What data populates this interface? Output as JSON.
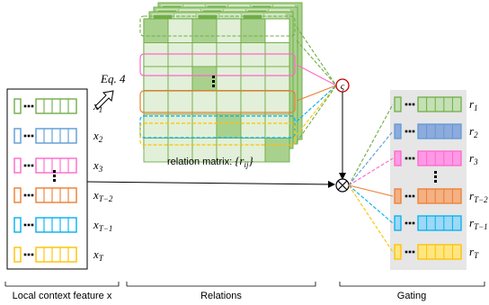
{
  "colors": {
    "green": "#70ad47",
    "green_fill": "#c5e0b4",
    "green_dark": "#70ad47",
    "blue": "#5b9bd5",
    "blue_fill": "#8faadc",
    "pink": "#ff66cc",
    "pink_fill": "#ff99e6",
    "orange": "#ed7d31",
    "orange_fill": "#f4b183",
    "cyan": "#00b0f0",
    "cyan_fill": "#9dd8f5",
    "yellow": "#ffc000",
    "yellow_fill": "#ffe680",
    "gating_bg": "#e6e6e6",
    "sigma_circle": "#c00000"
  },
  "input_features": {
    "rows": [
      {
        "color": "green",
        "label_base": "x",
        "label_sub": "1"
      },
      {
        "color": "blue",
        "label_base": "x",
        "label_sub": "2"
      },
      {
        "color": "pink",
        "label_base": "x",
        "label_sub": "3"
      },
      {
        "color": "orange",
        "label_base": "x",
        "label_sub": "T−2"
      },
      {
        "color": "cyan",
        "label_base": "x",
        "label_sub": "T−1"
      },
      {
        "color": "yellow",
        "label_base": "x",
        "label_sub": "T"
      }
    ]
  },
  "relation_matrix": {
    "label_text": "relation matrix: ",
    "label_math": "{r",
    "label_sub": "ij",
    "label_end": "}",
    "eq_label": "Eq. 4"
  },
  "gating_outputs": {
    "rows": [
      {
        "color": "green",
        "fill": "green_fill",
        "label_base": "r",
        "label_sub": "1"
      },
      {
        "color": "blue",
        "fill": "blue_fill",
        "label_base": "r",
        "label_sub": "2"
      },
      {
        "color": "pink",
        "fill": "pink_fill",
        "label_base": "r",
        "label_sub": "3"
      },
      {
        "color": "orange",
        "fill": "orange_fill",
        "label_base": "r",
        "label_sub": "T−2"
      },
      {
        "color": "cyan",
        "fill": "cyan_fill",
        "label_base": "r",
        "label_sub": "T−1"
      },
      {
        "color": "yellow",
        "fill": "yellow_fill",
        "label_base": "r",
        "label_sub": "T"
      }
    ]
  },
  "sections": {
    "local": "Local context feature x",
    "relations": "Relations",
    "gating": "Gating"
  },
  "operators": {
    "sigma": "ς",
    "multiply": "⊗"
  }
}
